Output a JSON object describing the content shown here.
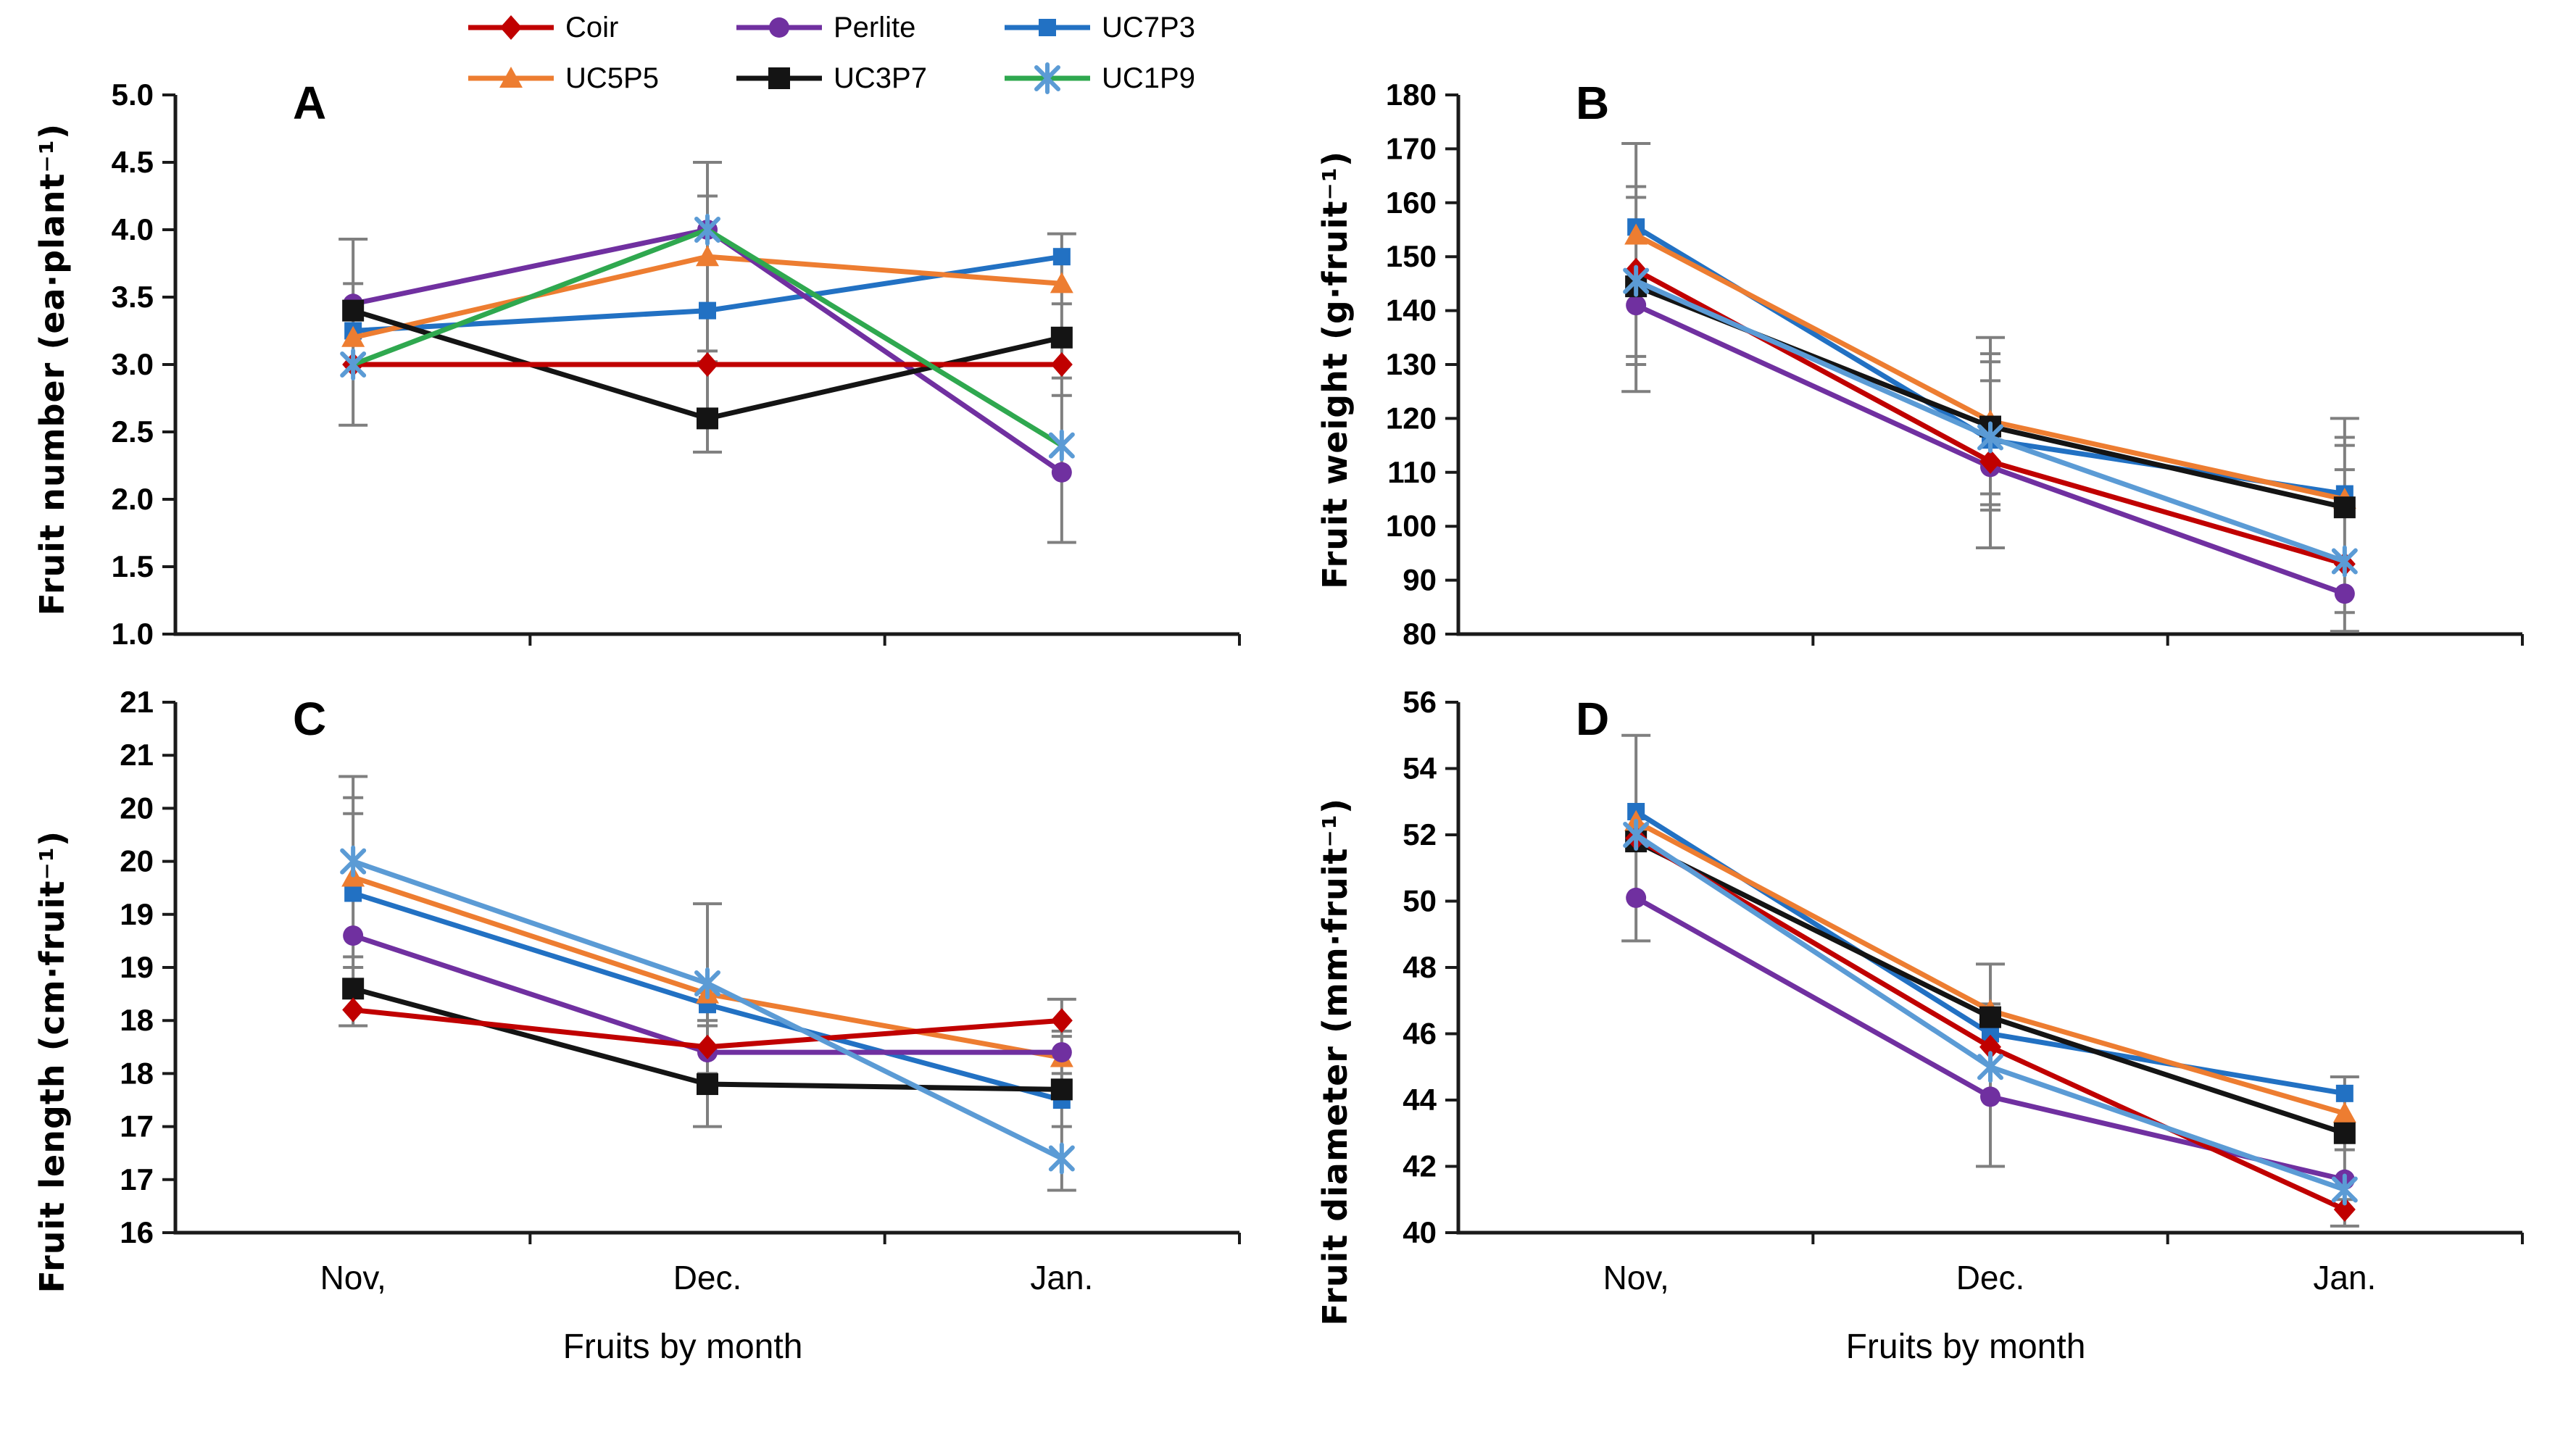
{
  "figure_title": "",
  "x_axis_title": "Fruits by month",
  "months": [
    "Nov,",
    "Dec.",
    "Jan."
  ],
  "colors": {
    "axis": "#1a1a1a",
    "error_bar": "#7f7f7f",
    "background": "#ffffff"
  },
  "series_styles": [
    {
      "name": "Coir",
      "color": "#C00000",
      "marker": "diamond",
      "line_color": "#C00000"
    },
    {
      "name": "Perlite",
      "color": "#7030A0",
      "marker": "circle",
      "line_color": "#7030A0"
    },
    {
      "name": "UC7P3",
      "color": "#2271C3",
      "marker": "square",
      "line_color": "#2271C3"
    },
    {
      "name": "UC5P5",
      "color": "#ED7D31",
      "marker": "triangle",
      "line_color": "#ED7D31"
    },
    {
      "name": "UC3P7",
      "color": "#141414",
      "marker": "square-lg",
      "line_color": "#141414"
    },
    {
      "name": "UC1P9",
      "color": "#5B9BD5",
      "marker": "asterisk",
      "line_color": "#5B9BD5",
      "line_color_panel_A": "#2FA84F",
      "legend_line_color": "#2FA84F"
    }
  ],
  "legend": {
    "rows": [
      [
        "Coir",
        "Perlite",
        "UC7P3"
      ],
      [
        "UC5P5",
        "UC3P7",
        "UC1P9"
      ]
    ]
  },
  "chart_data": [
    {
      "id": "A",
      "type": "line",
      "letter": "A",
      "ylabel": "Fruit number (ea·plant⁻¹)",
      "xlabel": "",
      "ylim": [
        1.0,
        5.0
      ],
      "ytick_values": [
        5.0,
        4.5,
        4.0,
        3.5,
        3.0,
        2.5,
        2.0,
        1.5,
        1.0
      ],
      "ytick_labels": [
        "5.0",
        "4.5",
        "4.0",
        "3.5",
        "3.0",
        "2.5",
        "2.0",
        "1.5",
        "1.0"
      ],
      "categories": [
        "Nov,",
        "Dec.",
        "Jan."
      ],
      "show_x_labels": false,
      "legend_position": "top",
      "grid": false,
      "series": [
        {
          "name": "Coir",
          "values": [
            3.0,
            3.0,
            3.0
          ]
        },
        {
          "name": "Perlite",
          "values": [
            3.45,
            4.0,
            2.2
          ]
        },
        {
          "name": "UC7P3",
          "values": [
            3.25,
            3.4,
            3.8
          ]
        },
        {
          "name": "UC5P5",
          "values": [
            3.2,
            3.8,
            3.6
          ]
        },
        {
          "name": "UC3P7",
          "values": [
            3.4,
            2.6,
            3.2
          ]
        },
        {
          "name": "UC1P9",
          "values": [
            3.0,
            4.0,
            2.4
          ]
        }
      ],
      "error_bars": [
        {
          "lo": 2.55,
          "hi": 3.93,
          "caps": [
            3.6
          ]
        },
        {
          "lo": 2.35,
          "hi": 4.5,
          "caps": [
            4.25,
            3.1,
            3.02
          ]
        },
        {
          "lo": 1.68,
          "hi": 3.97,
          "caps": [
            3.45,
            2.9,
            2.77
          ]
        }
      ]
    },
    {
      "id": "B",
      "type": "line",
      "letter": "B",
      "ylabel": "Fruit weight (g·fruit⁻¹)",
      "xlabel": "",
      "ylim": [
        80,
        180
      ],
      "ytick_values": [
        180,
        170,
        160,
        150,
        140,
        130,
        120,
        110,
        100,
        90,
        80
      ],
      "ytick_labels": [
        "180",
        "170",
        "160",
        "150",
        "140",
        "130",
        "120",
        "110",
        "100",
        "90",
        "80"
      ],
      "categories": [
        "Nov,",
        "Dec.",
        "Jan."
      ],
      "show_x_labels": false,
      "grid": false,
      "series": [
        {
          "name": "Coir",
          "values": [
            147.5,
            112.0,
            93.0
          ]
        },
        {
          "name": "Perlite",
          "values": [
            141.0,
            111.0,
            87.5
          ]
        },
        {
          "name": "UC7P3",
          "values": [
            155.5,
            116.0,
            106.0
          ]
        },
        {
          "name": "UC5P5",
          "values": [
            154.0,
            119.5,
            105.0
          ]
        },
        {
          "name": "UC3P7",
          "values": [
            144.5,
            118.5,
            103.5
          ]
        },
        {
          "name": "UC1P9",
          "values": [
            145.5,
            116.5,
            93.5
          ]
        }
      ],
      "error_bars": [
        {
          "lo": 125,
          "hi": 171,
          "caps": [
            163,
            161,
            131.5,
            130
          ]
        },
        {
          "lo": 96,
          "hi": 135,
          "caps": [
            132,
            130.5,
            127,
            106,
            104,
            103
          ]
        },
        {
          "lo": 80.5,
          "hi": 120,
          "caps": [
            116.5,
            115,
            110.5,
            84
          ]
        }
      ]
    },
    {
      "id": "C",
      "type": "line",
      "letter": "C",
      "ylabel": "Fruit length (cm·fruit⁻¹)",
      "xlabel": "Fruits by month",
      "ylim": [
        16,
        21
      ],
      "ytick_values": [
        21,
        20.5,
        20,
        19.5,
        19,
        18.5,
        18,
        17.5,
        17,
        16.5,
        16
      ],
      "ytick_labels": [
        "21",
        "21",
        "20",
        "20",
        "19",
        "19",
        "18",
        "18",
        "17",
        "17",
        "16"
      ],
      "categories": [
        "Nov,",
        "Dec.",
        "Jan."
      ],
      "show_x_labels": true,
      "grid": false,
      "series": [
        {
          "name": "Coir",
          "values": [
            18.1,
            17.75,
            18.0
          ]
        },
        {
          "name": "Perlite",
          "values": [
            18.8,
            17.7,
            17.7
          ]
        },
        {
          "name": "UC7P3",
          "values": [
            19.2,
            18.15,
            17.25
          ]
        },
        {
          "name": "UC5P5",
          "values": [
            19.35,
            18.25,
            17.65
          ]
        },
        {
          "name": "UC3P7",
          "values": [
            18.3,
            17.4,
            17.35
          ]
        },
        {
          "name": "UC1P9",
          "values": [
            19.5,
            18.35,
            16.7
          ]
        }
      ],
      "error_bars": [
        {
          "lo": 17.95,
          "hi": 20.3,
          "caps": [
            20.1,
            19.95,
            18.6,
            18.5
          ]
        },
        {
          "lo": 17.0,
          "hi": 19.1,
          "caps": [
            18.0,
            17.95,
            17.5
          ]
        },
        {
          "lo": 16.4,
          "hi": 18.2,
          "caps": [
            17.9,
            17.85,
            17.5,
            17.0
          ]
        }
      ]
    },
    {
      "id": "D",
      "type": "line",
      "letter": "D",
      "ylabel": "Fruit diameter (mm·fruit⁻¹)",
      "xlabel": "Fruits by month",
      "ylim": [
        40,
        56
      ],
      "ytick_values": [
        56,
        54,
        52,
        50,
        48,
        46,
        44,
        42,
        40
      ],
      "ytick_labels": [
        "56",
        "54",
        "52",
        "50",
        "48",
        "46",
        "44",
        "42",
        "40"
      ],
      "categories": [
        "Nov,",
        "Dec.",
        "Jan."
      ],
      "show_x_labels": true,
      "grid": false,
      "series": [
        {
          "name": "Coir",
          "values": [
            51.9,
            45.6,
            40.7
          ]
        },
        {
          "name": "Perlite",
          "values": [
            50.1,
            44.1,
            41.6
          ]
        },
        {
          "name": "UC7P3",
          "values": [
            52.7,
            46.0,
            44.2
          ]
        },
        {
          "name": "UC5P5",
          "values": [
            52.4,
            46.7,
            43.6
          ]
        },
        {
          "name": "UC3P7",
          "values": [
            51.8,
            46.5,
            43.0
          ]
        },
        {
          "name": "UC1P9",
          "values": [
            52.0,
            45.0,
            41.3
          ]
        }
      ],
      "error_bars": [
        {
          "lo": 48.8,
          "hi": 55.0,
          "caps": []
        },
        {
          "lo": 42.0,
          "hi": 48.1,
          "caps": [
            46.9
          ]
        },
        {
          "lo": 40.2,
          "hi": 44.7,
          "caps": [
            42.5,
            41.0
          ]
        }
      ]
    }
  ]
}
